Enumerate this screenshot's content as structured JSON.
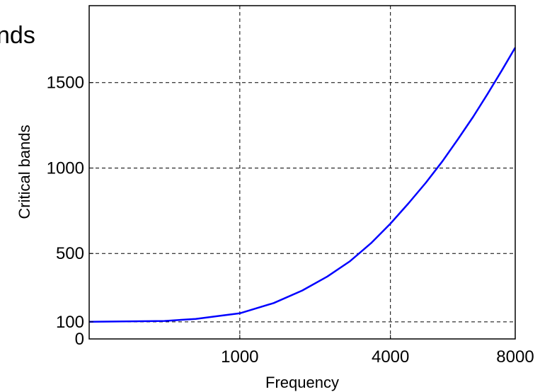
{
  "chart_data": {
    "type": "line",
    "title": "nds",
    "xlabel": "Frequency",
    "ylabel": "Critical bands",
    "xlim": [
      0,
      8000
    ],
    "ylim": [
      0,
      1950
    ],
    "x_ticks": [
      1000,
      4000,
      8000
    ],
    "x_tick_labels": [
      "1000",
      "4000",
      "8000"
    ],
    "y_ticks": [
      0,
      100,
      500,
      1000,
      1500
    ],
    "y_tick_labels": [
      "0",
      "100",
      "500",
      "1000",
      "1500"
    ],
    "grid": true,
    "grid_style": "dashed",
    "x_axis_scale": "nonlinear (ticks at 1000, 4000, 8000 equally spaced in square-root of frequency)",
    "series": [
      {
        "color": "#0000ff",
        "x": [
          0,
          250,
          500,
          750,
          1000,
          1500,
          2000,
          2500,
          3000,
          3500,
          4000,
          4500,
          5000,
          5500,
          6000,
          6500,
          7000,
          7500,
          8000
        ],
        "y": [
          100,
          105,
          117,
          135,
          150,
          210,
          283,
          365,
          455,
          560,
          675,
          795,
          915,
          1040,
          1170,
          1300,
          1435,
          1570,
          1705
        ]
      }
    ]
  }
}
